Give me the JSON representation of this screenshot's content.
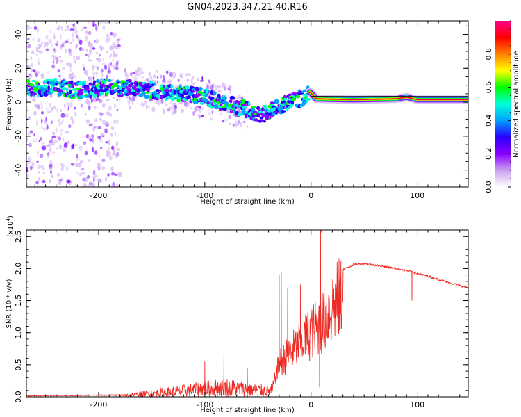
{
  "figure_title": "GN04.2023.347.21.40.R16",
  "chart_data": [
    {
      "type": "heatmap",
      "xlabel": "Height of straight line (km)",
      "ylabel": "Frequency (Hz)",
      "xlim": [
        -268,
        148
      ],
      "ylim": [
        -50,
        48
      ],
      "xticks": [
        -200,
        -100,
        0,
        100
      ],
      "xtick_labels": [
        "-200",
        "-100",
        "0",
        "100"
      ],
      "yticks": [
        -40,
        -20,
        0,
        20,
        40
      ],
      "ytick_labels": [
        "-40",
        "-20",
        "0",
        "20",
        "40"
      ],
      "colorbar": {
        "label": "Normalized spectral amplitude",
        "range": [
          0,
          1
        ],
        "ticks": [
          0.0,
          0.2,
          0.4,
          0.6,
          0.8
        ],
        "tick_labels": [
          "0.0",
          "0.2",
          "0.4",
          "0.6",
          "0.8"
        ],
        "colormap": [
          "#ffffff",
          "#c9a0f0",
          "#8a00ff",
          "#2a00ff",
          "#00a0ff",
          "#00ffd8",
          "#00ff00",
          "#ffff00",
          "#ff7f00",
          "#ff0000",
          "#ff0088"
        ]
      },
      "ridge": [
        {
          "x": -265,
          "f": 8
        },
        {
          "x": -240,
          "f": 9
        },
        {
          "x": -220,
          "f": 7
        },
        {
          "x": -190,
          "f": 9
        },
        {
          "x": -160,
          "f": 8
        },
        {
          "x": -140,
          "f": 6
        },
        {
          "x": -120,
          "f": 5
        },
        {
          "x": -100,
          "f": 3
        },
        {
          "x": -80,
          "f": -1
        },
        {
          "x": -60,
          "f": -4
        },
        {
          "x": -48,
          "f": -8
        },
        {
          "x": -40,
          "f": -6
        },
        {
          "x": -30,
          "f": -2
        },
        {
          "x": -15,
          "f": 1
        },
        {
          "x": -5,
          "f": 3
        },
        {
          "x": -1,
          "f": 6
        },
        {
          "x": 5,
          "f": 2
        },
        {
          "x": 40,
          "f": 1.5
        },
        {
          "x": 80,
          "f": 2
        },
        {
          "x": 90,
          "f": 3
        },
        {
          "x": 100,
          "f": 1.5
        },
        {
          "x": 148,
          "f": 1.5
        }
      ],
      "scatter_bands": [
        {
          "x_from": -268,
          "x_to": -180,
          "f_from": -50,
          "f_to": 48
        },
        {
          "x_from": -175,
          "x_to": -60,
          "f_from": -20,
          "f_to": 20
        }
      ]
    },
    {
      "type": "line",
      "color": "#ee2a24",
      "xlabel": "Height of straight line (km)",
      "ylabel": "SNR (10 * v/v)",
      "exponent_label": "(x10",
      "exponent_power": "4",
      "exponent_close": ")",
      "xlim": [
        -268,
        148
      ],
      "ylim": [
        0,
        2.6
      ],
      "xticks": [
        -200,
        -100,
        0,
        100
      ],
      "xtick_labels": [
        "-200",
        "-100",
        "0",
        "100"
      ],
      "yticks": [
        0.0,
        0.5,
        1.0,
        1.5,
        2.0,
        2.5
      ],
      "ytick_labels": [
        "0.0",
        "0.5",
        "1.0",
        "1.5",
        "2.0",
        "2.5"
      ],
      "envelope": [
        {
          "x": -268,
          "y": 0.02
        },
        {
          "x": -180,
          "y": 0.03
        },
        {
          "x": -160,
          "y": 0.08
        },
        {
          "x": -140,
          "y": 0.13
        },
        {
          "x": -120,
          "y": 0.18
        },
        {
          "x": -100,
          "y": 0.24
        },
        {
          "x": -80,
          "y": 0.28
        },
        {
          "x": -60,
          "y": 0.22
        },
        {
          "x": -40,
          "y": 0.17
        },
        {
          "x": -36,
          "y": 0.2
        },
        {
          "x": -30,
          "y": 0.65
        },
        {
          "x": -20,
          "y": 0.85
        },
        {
          "x": -10,
          "y": 1.05
        },
        {
          "x": 0,
          "y": 1.25
        },
        {
          "x": 10,
          "y": 1.45
        },
        {
          "x": 20,
          "y": 1.75
        },
        {
          "x": 30,
          "y": 1.98
        },
        {
          "x": 40,
          "y": 2.06
        },
        {
          "x": 50,
          "y": 2.08
        },
        {
          "x": 70,
          "y": 2.03
        },
        {
          "x": 90,
          "y": 1.97
        },
        {
          "x": 110,
          "y": 1.88
        },
        {
          "x": 130,
          "y": 1.78
        },
        {
          "x": 148,
          "y": 1.7
        }
      ],
      "spikes": [
        {
          "x": -100,
          "y": 0.55
        },
        {
          "x": -82,
          "y": 0.65
        },
        {
          "x": -60,
          "y": 0.45
        },
        {
          "x": -30,
          "y": 1.9
        },
        {
          "x": -28,
          "y": 1.95
        },
        {
          "x": -22,
          "y": 1.7
        },
        {
          "x": -10,
          "y": 1.75
        },
        {
          "x": 8,
          "y": 0.15
        },
        {
          "x": 9,
          "y": 2.6
        },
        {
          "x": 95,
          "y": 1.5
        }
      ]
    }
  ]
}
